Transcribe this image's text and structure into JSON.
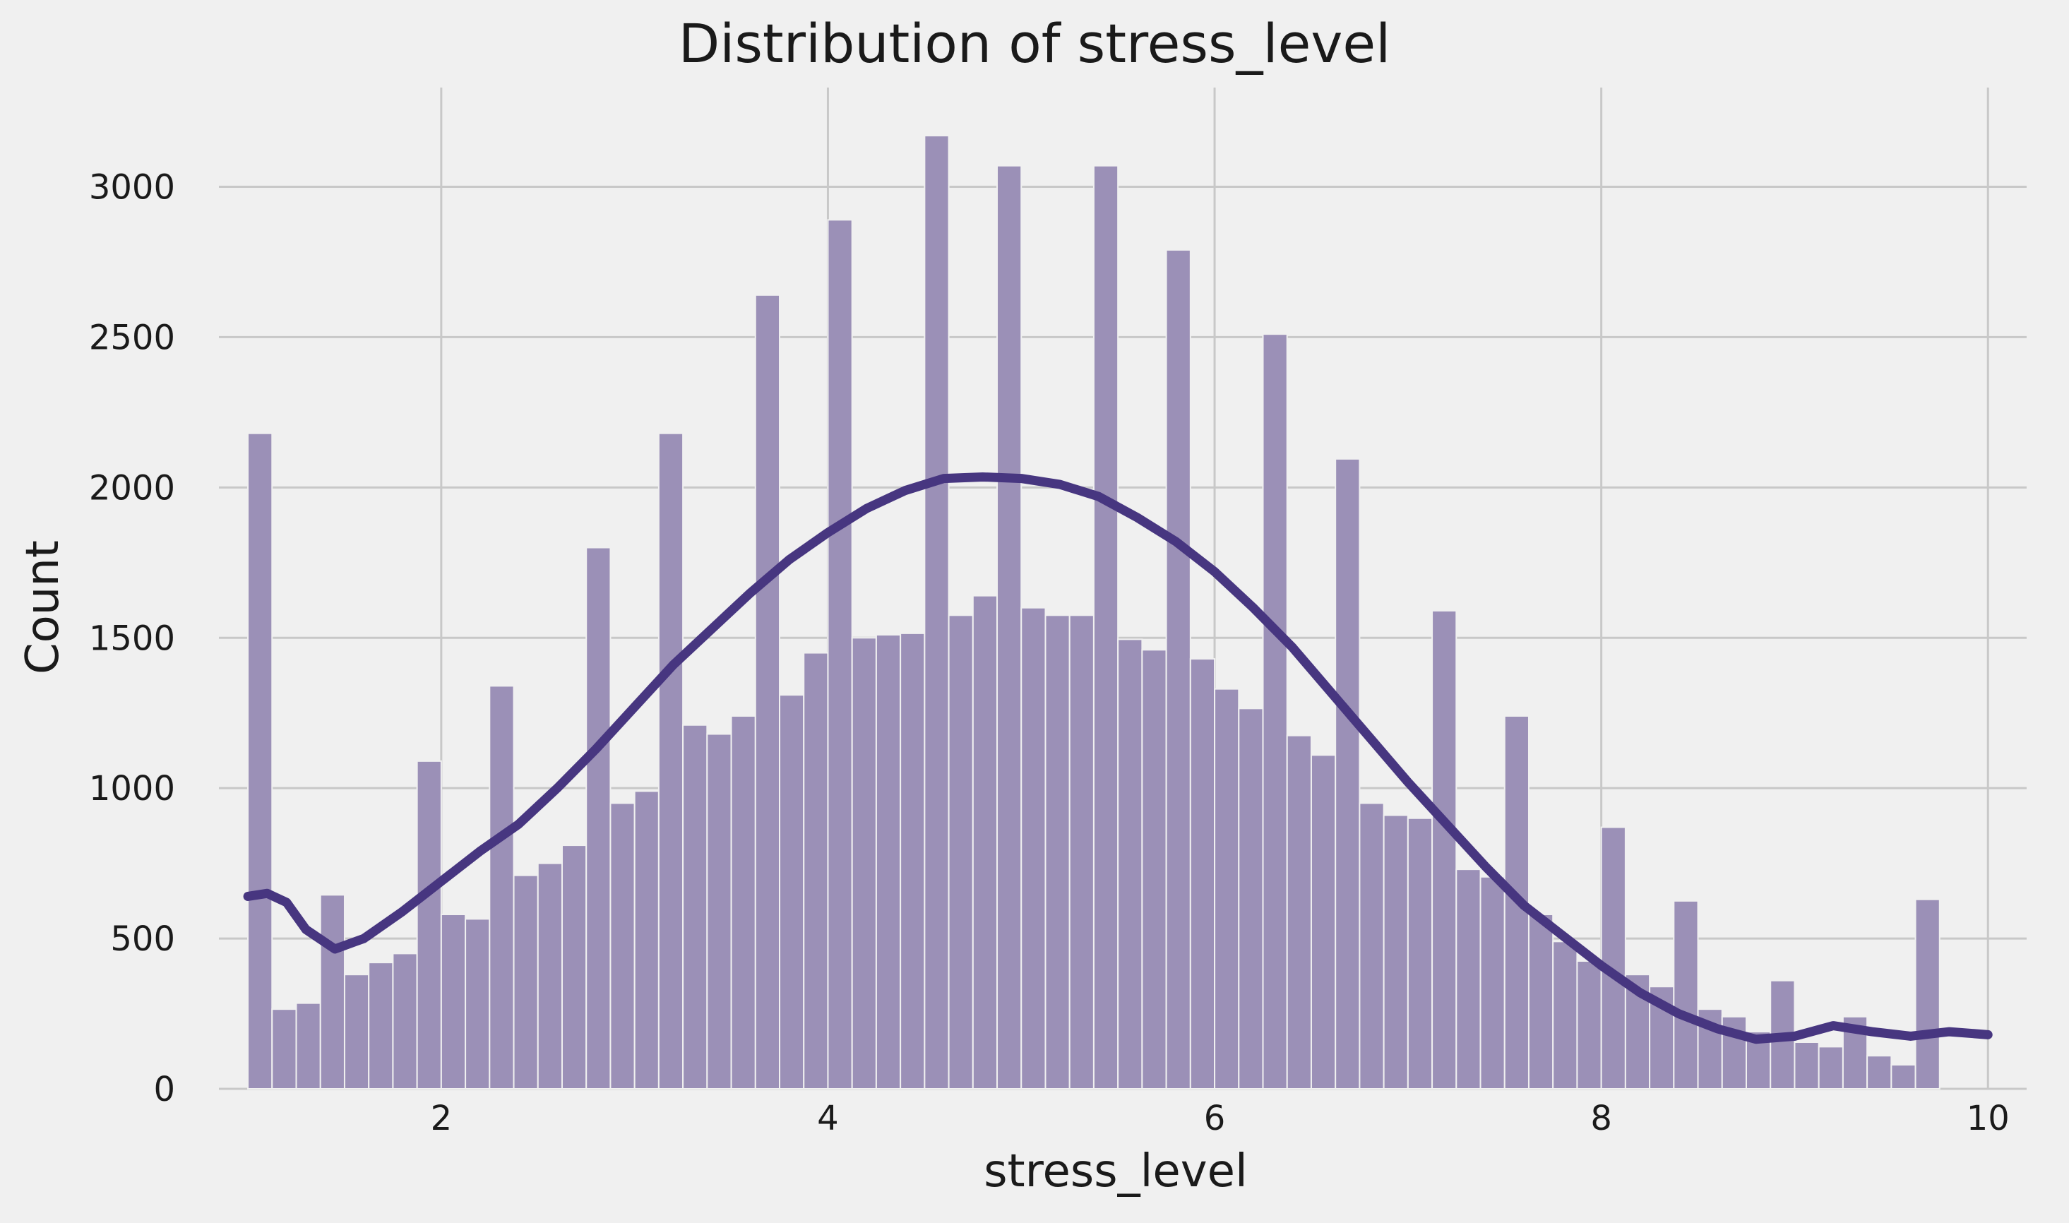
{
  "chart_data": {
    "type": "bar",
    "title": "Distribution of stress_level",
    "xlabel": "stress_level",
    "ylabel": "Count",
    "xlim": [
      0.85,
      10.2
    ],
    "ylim": [
      0,
      3330
    ],
    "xticks": [
      2,
      4,
      6,
      8,
      10
    ],
    "yticks": [
      0,
      500,
      1000,
      1500,
      2000,
      2500,
      3000
    ],
    "grid": true,
    "bin_start": 1.0,
    "bin_width": 0.125,
    "bar_color": "#9b90b7",
    "line_color": "#473680",
    "values": [
      2180,
      265,
      285,
      645,
      380,
      420,
      450,
      1090,
      580,
      565,
      1340,
      710,
      750,
      810,
      1800,
      950,
      990,
      2180,
      1210,
      1180,
      1240,
      2640,
      1310,
      1450,
      2890,
      1500,
      1510,
      1515,
      3170,
      1575,
      1640,
      3070,
      1600,
      1575,
      1575,
      3070,
      1495,
      1460,
      2790,
      1430,
      1330,
      1265,
      2510,
      1175,
      1110,
      2095,
      950,
      910,
      900,
      1590,
      730,
      705,
      1240,
      580,
      490,
      425,
      870,
      380,
      340,
      625,
      265,
      240,
      190,
      360,
      155,
      140,
      240,
      110,
      80,
      630
    ],
    "kde": {
      "x": [
        1.0,
        1.1,
        1.2,
        1.3,
        1.45,
        1.6,
        1.8,
        2.0,
        2.2,
        2.4,
        2.6,
        2.8,
        3.0,
        3.2,
        3.4,
        3.6,
        3.8,
        4.0,
        4.2,
        4.4,
        4.6,
        4.8,
        5.0,
        5.2,
        5.4,
        5.6,
        5.8,
        6.0,
        6.2,
        6.4,
        6.6,
        6.8,
        7.0,
        7.2,
        7.4,
        7.6,
        7.8,
        8.0,
        8.2,
        8.4,
        8.6,
        8.8,
        9.0,
        9.2,
        9.4,
        9.6,
        9.8,
        10.0
      ],
      "y": [
        640,
        650,
        620,
        530,
        465,
        500,
        590,
        690,
        790,
        880,
        1000,
        1130,
        1270,
        1410,
        1530,
        1650,
        1760,
        1850,
        1930,
        1990,
        2030,
        2035,
        2030,
        2010,
        1970,
        1900,
        1820,
        1720,
        1600,
        1470,
        1320,
        1170,
        1020,
        880,
        740,
        610,
        510,
        410,
        320,
        250,
        200,
        165,
        175,
        210,
        190,
        175,
        190,
        180
      ]
    }
  }
}
